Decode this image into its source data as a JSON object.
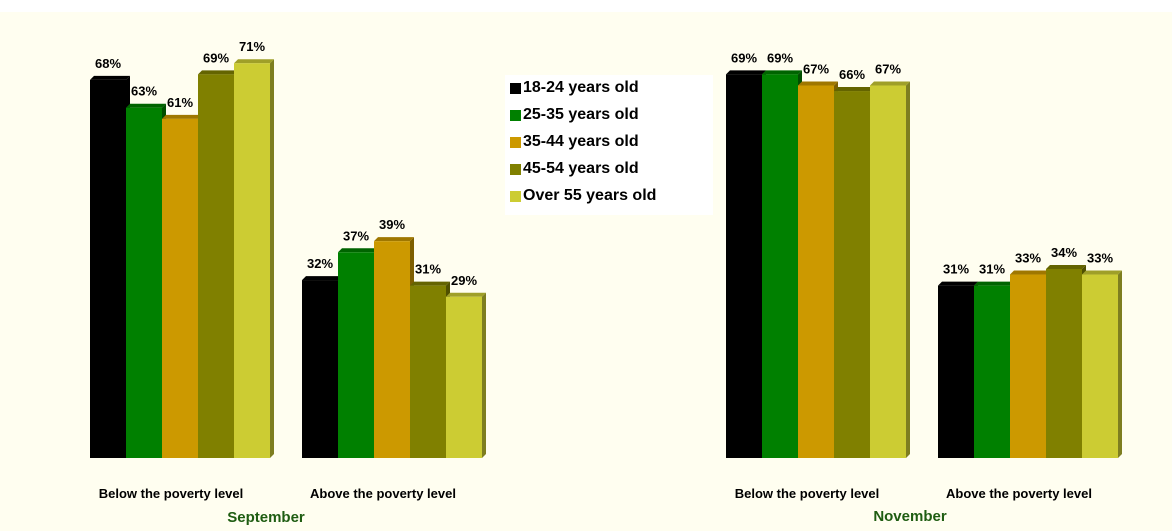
{
  "chart_data": {
    "type": "bar",
    "series_names": [
      "18-24 years old",
      "25-35 years old",
      "35-44 years old",
      "45-54 years old",
      "Over 55 years old"
    ],
    "series_colors": [
      "#000000",
      "#008000",
      "#cc9900",
      "#808000",
      "#cccc33"
    ],
    "value_format": "{v}%",
    "ylim": [
      0,
      100
    ],
    "grid": false,
    "legend_position": "center",
    "panels": [
      {
        "title": "September",
        "categories": [
          "Below the poverty level",
          "Above the poverty level"
        ],
        "series": [
          {
            "name": "18-24 years old",
            "values": [
              68,
              32
            ]
          },
          {
            "name": "25-35 years old",
            "values": [
              63,
              37
            ]
          },
          {
            "name": "35-44 years old",
            "values": [
              61,
              39
            ]
          },
          {
            "name": "45-54 years old",
            "values": [
              69,
              31
            ]
          },
          {
            "name": "Over 55 years old",
            "values": [
              71,
              29
            ]
          }
        ]
      },
      {
        "title": "November",
        "categories": [
          "Below the poverty level",
          "Above the poverty level"
        ],
        "series": [
          {
            "name": "18-24 years old",
            "values": [
              69,
              31
            ]
          },
          {
            "name": "25-35 years old",
            "values": [
              69,
              31
            ]
          },
          {
            "name": "35-44 years old",
            "values": [
              67,
              33
            ]
          },
          {
            "name": "45-54 years old",
            "values": [
              66,
              34
            ]
          },
          {
            "name": "Over 55 years old",
            "values": [
              67,
              33
            ]
          }
        ]
      }
    ]
  }
}
